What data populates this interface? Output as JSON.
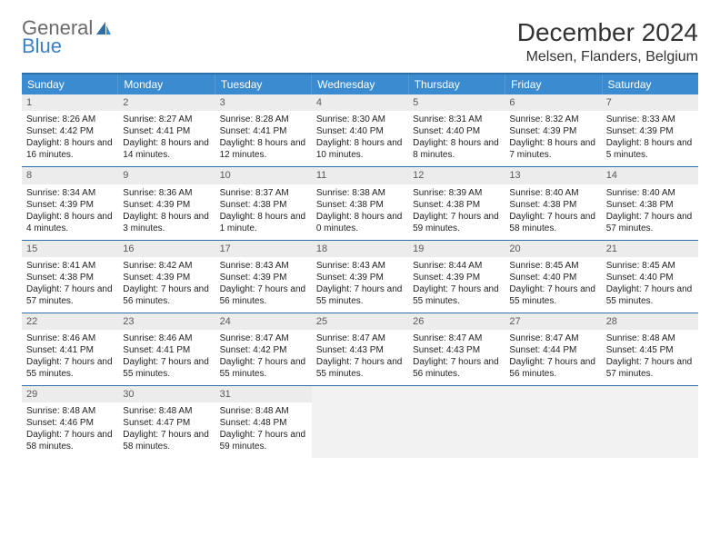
{
  "logo": {
    "word1": "General",
    "word2": "Blue"
  },
  "title": "December 2024",
  "location": "Melsen, Flanders, Belgium",
  "colors": {
    "header_bg": "#3b8bd0",
    "rule": "#2f6fa8",
    "daynum_bg": "#ececec",
    "empty_bg": "#f2f2f2"
  },
  "dow": [
    "Sunday",
    "Monday",
    "Tuesday",
    "Wednesday",
    "Thursday",
    "Friday",
    "Saturday"
  ],
  "weeks": [
    [
      {
        "n": "1",
        "sr": "Sunrise: 8:26 AM",
        "ss": "Sunset: 4:42 PM",
        "dl": "Daylight: 8 hours and 16 minutes."
      },
      {
        "n": "2",
        "sr": "Sunrise: 8:27 AM",
        "ss": "Sunset: 4:41 PM",
        "dl": "Daylight: 8 hours and 14 minutes."
      },
      {
        "n": "3",
        "sr": "Sunrise: 8:28 AM",
        "ss": "Sunset: 4:41 PM",
        "dl": "Daylight: 8 hours and 12 minutes."
      },
      {
        "n": "4",
        "sr": "Sunrise: 8:30 AM",
        "ss": "Sunset: 4:40 PM",
        "dl": "Daylight: 8 hours and 10 minutes."
      },
      {
        "n": "5",
        "sr": "Sunrise: 8:31 AM",
        "ss": "Sunset: 4:40 PM",
        "dl": "Daylight: 8 hours and 8 minutes."
      },
      {
        "n": "6",
        "sr": "Sunrise: 8:32 AM",
        "ss": "Sunset: 4:39 PM",
        "dl": "Daylight: 8 hours and 7 minutes."
      },
      {
        "n": "7",
        "sr": "Sunrise: 8:33 AM",
        "ss": "Sunset: 4:39 PM",
        "dl": "Daylight: 8 hours and 5 minutes."
      }
    ],
    [
      {
        "n": "8",
        "sr": "Sunrise: 8:34 AM",
        "ss": "Sunset: 4:39 PM",
        "dl": "Daylight: 8 hours and 4 minutes."
      },
      {
        "n": "9",
        "sr": "Sunrise: 8:36 AM",
        "ss": "Sunset: 4:39 PM",
        "dl": "Daylight: 8 hours and 3 minutes."
      },
      {
        "n": "10",
        "sr": "Sunrise: 8:37 AM",
        "ss": "Sunset: 4:38 PM",
        "dl": "Daylight: 8 hours and 1 minute."
      },
      {
        "n": "11",
        "sr": "Sunrise: 8:38 AM",
        "ss": "Sunset: 4:38 PM",
        "dl": "Daylight: 8 hours and 0 minutes."
      },
      {
        "n": "12",
        "sr": "Sunrise: 8:39 AM",
        "ss": "Sunset: 4:38 PM",
        "dl": "Daylight: 7 hours and 59 minutes."
      },
      {
        "n": "13",
        "sr": "Sunrise: 8:40 AM",
        "ss": "Sunset: 4:38 PM",
        "dl": "Daylight: 7 hours and 58 minutes."
      },
      {
        "n": "14",
        "sr": "Sunrise: 8:40 AM",
        "ss": "Sunset: 4:38 PM",
        "dl": "Daylight: 7 hours and 57 minutes."
      }
    ],
    [
      {
        "n": "15",
        "sr": "Sunrise: 8:41 AM",
        "ss": "Sunset: 4:38 PM",
        "dl": "Daylight: 7 hours and 57 minutes."
      },
      {
        "n": "16",
        "sr": "Sunrise: 8:42 AM",
        "ss": "Sunset: 4:39 PM",
        "dl": "Daylight: 7 hours and 56 minutes."
      },
      {
        "n": "17",
        "sr": "Sunrise: 8:43 AM",
        "ss": "Sunset: 4:39 PM",
        "dl": "Daylight: 7 hours and 56 minutes."
      },
      {
        "n": "18",
        "sr": "Sunrise: 8:43 AM",
        "ss": "Sunset: 4:39 PM",
        "dl": "Daylight: 7 hours and 55 minutes."
      },
      {
        "n": "19",
        "sr": "Sunrise: 8:44 AM",
        "ss": "Sunset: 4:39 PM",
        "dl": "Daylight: 7 hours and 55 minutes."
      },
      {
        "n": "20",
        "sr": "Sunrise: 8:45 AM",
        "ss": "Sunset: 4:40 PM",
        "dl": "Daylight: 7 hours and 55 minutes."
      },
      {
        "n": "21",
        "sr": "Sunrise: 8:45 AM",
        "ss": "Sunset: 4:40 PM",
        "dl": "Daylight: 7 hours and 55 minutes."
      }
    ],
    [
      {
        "n": "22",
        "sr": "Sunrise: 8:46 AM",
        "ss": "Sunset: 4:41 PM",
        "dl": "Daylight: 7 hours and 55 minutes."
      },
      {
        "n": "23",
        "sr": "Sunrise: 8:46 AM",
        "ss": "Sunset: 4:41 PM",
        "dl": "Daylight: 7 hours and 55 minutes."
      },
      {
        "n": "24",
        "sr": "Sunrise: 8:47 AM",
        "ss": "Sunset: 4:42 PM",
        "dl": "Daylight: 7 hours and 55 minutes."
      },
      {
        "n": "25",
        "sr": "Sunrise: 8:47 AM",
        "ss": "Sunset: 4:43 PM",
        "dl": "Daylight: 7 hours and 55 minutes."
      },
      {
        "n": "26",
        "sr": "Sunrise: 8:47 AM",
        "ss": "Sunset: 4:43 PM",
        "dl": "Daylight: 7 hours and 56 minutes."
      },
      {
        "n": "27",
        "sr": "Sunrise: 8:47 AM",
        "ss": "Sunset: 4:44 PM",
        "dl": "Daylight: 7 hours and 56 minutes."
      },
      {
        "n": "28",
        "sr": "Sunrise: 8:48 AM",
        "ss": "Sunset: 4:45 PM",
        "dl": "Daylight: 7 hours and 57 minutes."
      }
    ],
    [
      {
        "n": "29",
        "sr": "Sunrise: 8:48 AM",
        "ss": "Sunset: 4:46 PM",
        "dl": "Daylight: 7 hours and 58 minutes."
      },
      {
        "n": "30",
        "sr": "Sunrise: 8:48 AM",
        "ss": "Sunset: 4:47 PM",
        "dl": "Daylight: 7 hours and 58 minutes."
      },
      {
        "n": "31",
        "sr": "Sunrise: 8:48 AM",
        "ss": "Sunset: 4:48 PM",
        "dl": "Daylight: 7 hours and 59 minutes."
      },
      null,
      null,
      null,
      null
    ]
  ]
}
